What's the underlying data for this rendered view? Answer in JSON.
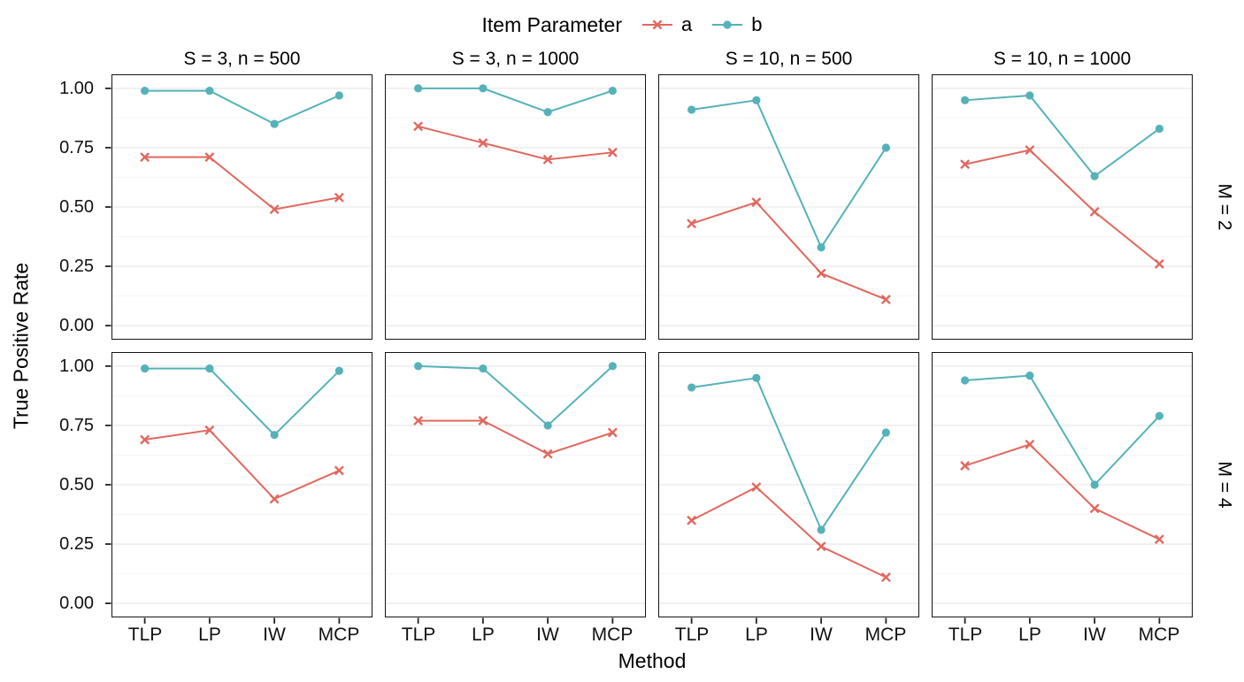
{
  "axes": {
    "y_title": "True Positive Rate",
    "x_title": "Method",
    "y_ticks": [
      "1.00",
      "0.75",
      "0.50",
      "0.25",
      "0.00"
    ],
    "y_tick_values": [
      1,
      0.75,
      0.5,
      0.25,
      0
    ],
    "x_ticks": [
      "TLP",
      "LP",
      "IW",
      "MCP"
    ]
  },
  "chart_data": {
    "type": "line",
    "x_categories": [
      "TLP",
      "LP",
      "IW",
      "MCP"
    ],
    "xlabel": "Method",
    "ylabel": "True Positive Rate",
    "ylim": [
      0,
      1
    ],
    "grid": "horizontal-only",
    "legend": {
      "title": "Item Parameter",
      "position": "top"
    },
    "col_facets": [
      "S = 3, n = 500",
      "S = 3, n = 1000",
      "S = 10, n = 500",
      "S = 10, n = 1000"
    ],
    "row_facets": [
      "M = 2",
      "M = 4"
    ],
    "series_meta": [
      {
        "name": "a",
        "color": "#E0685E",
        "marker": "cross"
      },
      {
        "name": "b",
        "color": "#54B2B8",
        "marker": "circle"
      }
    ],
    "panels": [
      {
        "row": "M = 2",
        "col": "S = 3, n = 500",
        "series": {
          "a": [
            0.71,
            0.71,
            0.49,
            0.54
          ],
          "b": [
            0.99,
            0.99,
            0.85,
            0.97
          ]
        }
      },
      {
        "row": "M = 2",
        "col": "S = 3, n = 1000",
        "series": {
          "a": [
            0.84,
            0.77,
            0.7,
            0.73
          ],
          "b": [
            1.0,
            1.0,
            0.9,
            0.99
          ]
        }
      },
      {
        "row": "M = 2",
        "col": "S = 10, n = 500",
        "series": {
          "a": [
            0.43,
            0.52,
            0.22,
            0.11
          ],
          "b": [
            0.91,
            0.95,
            0.33,
            0.75
          ]
        }
      },
      {
        "row": "M = 2",
        "col": "S = 10, n = 1000",
        "series": {
          "a": [
            0.68,
            0.74,
            0.48,
            0.26
          ],
          "b": [
            0.95,
            0.97,
            0.63,
            0.83
          ]
        }
      },
      {
        "row": "M = 4",
        "col": "S = 3, n = 500",
        "series": {
          "a": [
            0.69,
            0.73,
            0.44,
            0.56
          ],
          "b": [
            0.99,
            0.99,
            0.71,
            0.98
          ]
        }
      },
      {
        "row": "M = 4",
        "col": "S = 3, n = 1000",
        "series": {
          "a": [
            0.77,
            0.77,
            0.63,
            0.72
          ],
          "b": [
            1.0,
            0.99,
            0.75,
            1.0
          ]
        }
      },
      {
        "row": "M = 4",
        "col": "S = 10, n = 500",
        "series": {
          "a": [
            0.35,
            0.49,
            0.24,
            0.11
          ],
          "b": [
            0.91,
            0.95,
            0.31,
            0.72
          ]
        }
      },
      {
        "row": "M = 4",
        "col": "S = 10, n = 1000",
        "series": {
          "a": [
            0.58,
            0.67,
            0.4,
            0.27
          ],
          "b": [
            0.94,
            0.96,
            0.5,
            0.79
          ]
        }
      }
    ]
  }
}
